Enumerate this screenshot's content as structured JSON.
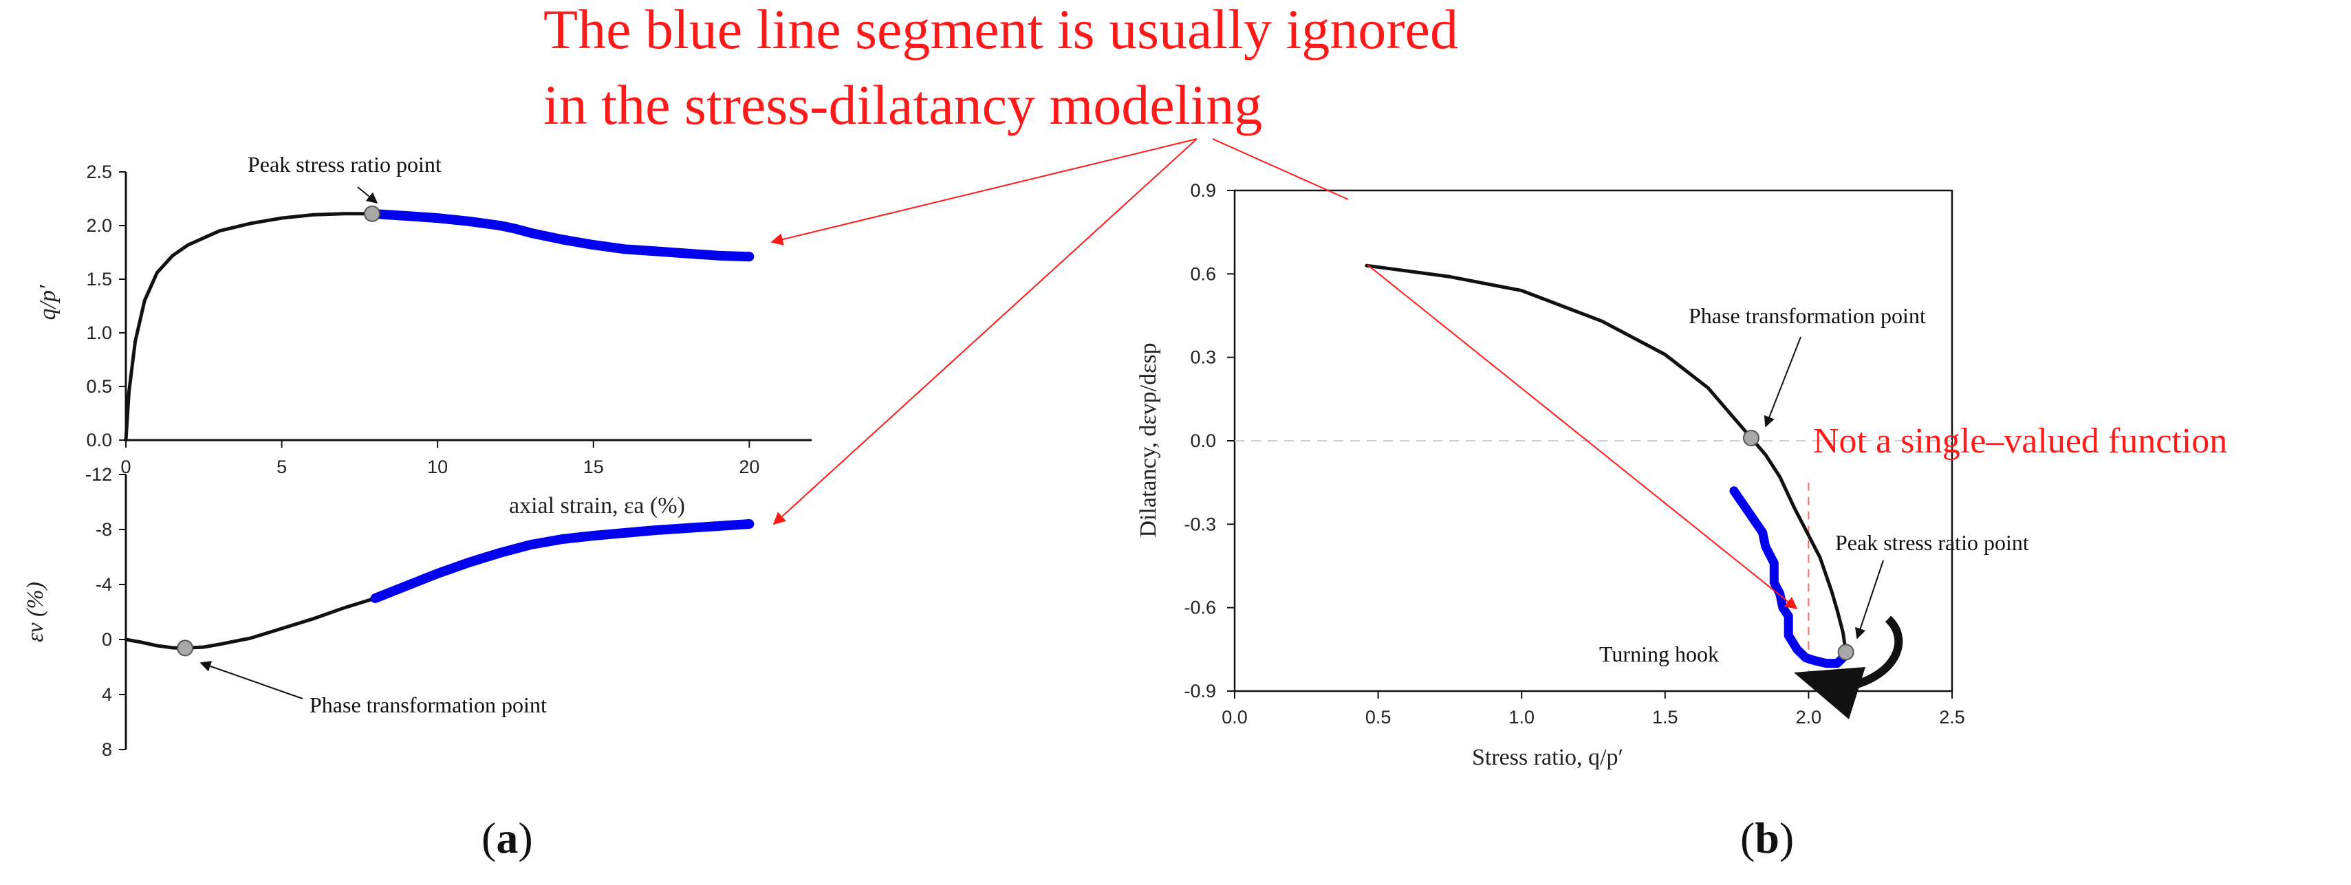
{
  "headline": {
    "line1": "The blue line segment  is usually ignored",
    "line2": "in the stress-dilatancy modeling"
  },
  "panels": {
    "a": "a",
    "b": "b"
  },
  "annotations": {
    "peak_a": "Peak stress ratio point",
    "phase_a": "Phase transformation point",
    "phase_b": "Phase transformation point",
    "peak_b": "Peak stress ratio point",
    "not_single": "Not a single–valued function",
    "turning_hook": "Turning hook"
  },
  "colors": {
    "black_curve": "#111111",
    "blue_curve": "#0000ee",
    "red": "#ff1a1a",
    "marker": "#a8a8a8"
  },
  "chart_data": [
    {
      "type": "line",
      "id": "a-top",
      "ylabel": "q/p′",
      "xlabel": "axial strain,  εa (%)",
      "xlim": [
        0,
        22
      ],
      "ylim": [
        0,
        2.5
      ],
      "xticks": [
        "0",
        "5",
        "10",
        "15",
        "20"
      ],
      "yticks": [
        "0.0",
        "0.5",
        "1.0",
        "1.5",
        "2.0",
        "2.5"
      ],
      "series": [
        {
          "color": "black",
          "x": [
            0,
            0.1,
            0.3,
            0.6,
            1.0,
            1.5,
            2.0,
            3.0,
            4.0,
            5.0,
            6.0,
            7.0,
            7.9
          ],
          "y": [
            0,
            0.45,
            0.92,
            1.3,
            1.56,
            1.72,
            1.82,
            1.95,
            2.02,
            2.07,
            2.1,
            2.11,
            2.11
          ]
        },
        {
          "color": "blue",
          "x": [
            7.9,
            9,
            10,
            11,
            12,
            12.5,
            13,
            14,
            15,
            16,
            17,
            18,
            19,
            20
          ],
          "y": [
            2.11,
            2.09,
            2.07,
            2.04,
            2.0,
            1.97,
            1.93,
            1.87,
            1.82,
            1.78,
            1.76,
            1.74,
            1.72,
            1.71
          ]
        }
      ],
      "markers": [
        {
          "x": 7.9,
          "y": 2.11
        }
      ]
    },
    {
      "type": "line",
      "id": "a-bottom",
      "ylabel": "εv (%)",
      "xlim": [
        0,
        22
      ],
      "ylim": [
        8,
        -12
      ],
      "yticks": [
        "-12",
        "-8",
        "-4",
        "0",
        "4",
        "8"
      ],
      "series": [
        {
          "color": "black",
          "x": [
            0,
            0.5,
            1.0,
            1.5,
            1.9,
            2.5,
            3.0,
            4.0,
            5.0,
            6.0,
            7.0,
            8.0
          ],
          "y": [
            0,
            0.2,
            0.45,
            0.6,
            0.62,
            0.55,
            0.35,
            -0.1,
            -0.8,
            -1.5,
            -2.3,
            -3.0
          ]
        },
        {
          "color": "blue",
          "x": [
            8.0,
            9,
            10,
            11,
            12,
            13,
            14,
            15,
            16,
            17,
            18,
            19,
            20
          ],
          "y": [
            -3.0,
            -3.9,
            -4.8,
            -5.6,
            -6.3,
            -6.9,
            -7.3,
            -7.55,
            -7.75,
            -7.95,
            -8.1,
            -8.25,
            -8.4
          ]
        }
      ],
      "markers": [
        {
          "x": 1.9,
          "y": 0.62
        }
      ]
    },
    {
      "type": "line",
      "id": "b",
      "ylabel": "Dilatancy,    dεvp/dεsp",
      "xlabel": "Stress ratio,      q/p′",
      "xlim": [
        0,
        2.5
      ],
      "ylim": [
        -0.9,
        0.9
      ],
      "xticks": [
        "0.0",
        "0.5",
        "1.0",
        "1.5",
        "2.0",
        "2.5"
      ],
      "yticks": [
        "-0.9",
        "-0.6",
        "-0.3",
        "0.0",
        "0.3",
        "0.6",
        "0.9"
      ],
      "series": [
        {
          "color": "black",
          "x": [
            0.46,
            0.75,
            1.0,
            1.28,
            1.5,
            1.65,
            1.8,
            1.85,
            1.9,
            1.95,
            2.0,
            2.04,
            2.08,
            2.1,
            2.12,
            2.13
          ],
          "y": [
            0.63,
            0.59,
            0.54,
            0.43,
            0.31,
            0.19,
            0.01,
            -0.05,
            -0.13,
            -0.24,
            -0.34,
            -0.42,
            -0.54,
            -0.61,
            -0.69,
            -0.76
          ]
        },
        {
          "color": "blue",
          "x": [
            1.74,
            1.78,
            1.8,
            1.84,
            1.85,
            1.88,
            1.88,
            1.9,
            1.91,
            1.93,
            1.93,
            1.96,
            1.99,
            2.02,
            2.06,
            2.1,
            2.12
          ],
          "y": [
            -0.18,
            -0.24,
            -0.27,
            -0.33,
            -0.38,
            -0.44,
            -0.51,
            -0.55,
            -0.6,
            -0.63,
            -0.7,
            -0.75,
            -0.78,
            -0.79,
            -0.8,
            -0.8,
            -0.78
          ]
        }
      ],
      "markers": [
        {
          "x": 1.8,
          "y": 0.01
        },
        {
          "x": 2.13,
          "y": -0.76
        }
      ],
      "reference_lines": {
        "horizontal_y": 0.0,
        "vertical_x": 2.0
      }
    }
  ]
}
